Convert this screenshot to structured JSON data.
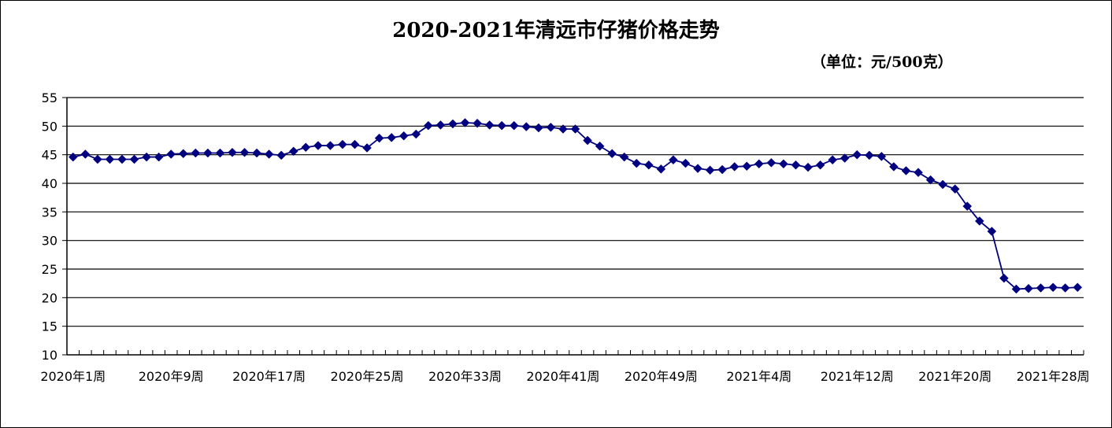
{
  "chart_data": {
    "type": "line",
    "title": "2020-2021年清远市仔猪价格走势",
    "unit": "（单位：元/500克）",
    "ylim": [
      10,
      55
    ],
    "yticks": [
      10,
      15,
      20,
      25,
      30,
      35,
      40,
      45,
      50,
      55
    ],
    "grid": true,
    "x_tick_labels": [
      {
        "index": 0,
        "label": "2020年1周"
      },
      {
        "index": 8,
        "label": "2020年9周"
      },
      {
        "index": 16,
        "label": "2020年17周"
      },
      {
        "index": 24,
        "label": "2020年25周"
      },
      {
        "index": 32,
        "label": "2020年33周"
      },
      {
        "index": 40,
        "label": "2020年41周"
      },
      {
        "index": 48,
        "label": "2020年49周"
      },
      {
        "index": 56,
        "label": "2021年4周"
      },
      {
        "index": 64,
        "label": "2021年12周"
      },
      {
        "index": 72,
        "label": "2021年20周"
      },
      {
        "index": 80,
        "label": "2021年28周"
      }
    ],
    "colors": {
      "series": "#000080",
      "grid": "#000000"
    },
    "series": [
      {
        "marker": "diamond",
        "values": [
          44.6,
          45.1,
          44.2,
          44.2,
          44.2,
          44.2,
          44.6,
          44.6,
          45.1,
          45.2,
          45.3,
          45.3,
          45.3,
          45.4,
          45.4,
          45.3,
          45.1,
          44.9,
          45.6,
          46.3,
          46.6,
          46.6,
          46.8,
          46.8,
          46.2,
          47.9,
          48.0,
          48.3,
          48.6,
          50.1,
          50.2,
          50.4,
          50.6,
          50.5,
          50.2,
          50.1,
          50.1,
          49.9,
          49.7,
          49.8,
          49.5,
          49.5,
          47.5,
          46.5,
          45.2,
          44.6,
          43.5,
          43.2,
          42.5,
          44.1,
          43.5,
          42.6,
          42.3,
          42.4,
          42.9,
          43.0,
          43.4,
          43.6,
          43.4,
          43.2,
          42.8,
          43.2,
          44.1,
          44.4,
          45.0,
          44.9,
          44.7,
          42.9,
          42.2,
          41.9,
          40.6,
          39.8,
          39.0,
          36.0,
          33.4,
          31.6,
          23.4,
          21.5,
          21.6,
          21.7,
          21.8,
          21.7,
          21.8
        ]
      }
    ]
  }
}
